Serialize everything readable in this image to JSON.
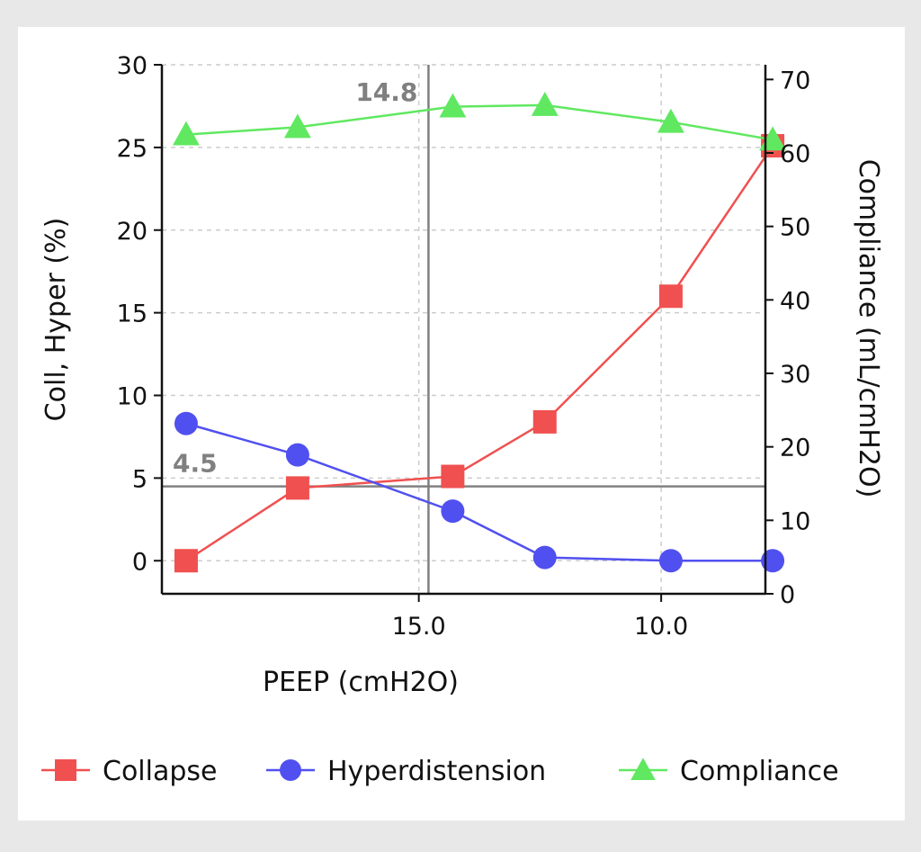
{
  "chart_data": {
    "type": "line",
    "xlabel": "PEEP (cmH2O)",
    "ylabel": "Coll, Hyper (%)",
    "y2label": "Compliance (mL/cmH2O)",
    "x_reversed": true,
    "xlim": [
      20.3,
      7.85
    ],
    "ylim": [
      -2,
      30
    ],
    "y2lim": [
      0,
      72
    ],
    "x_ticks": [
      15.0,
      10.0
    ],
    "x_tick_labels": [
      "15.0",
      "10.0"
    ],
    "y_ticks": [
      0,
      5,
      10,
      15,
      20,
      25,
      30
    ],
    "y_tick_labels": [
      "0",
      "5",
      "10",
      "15",
      "20",
      "25",
      "30"
    ],
    "y2_ticks": [
      0,
      10,
      20,
      30,
      40,
      50,
      60,
      70
    ],
    "y2_tick_labels": [
      "0",
      "10",
      "20",
      "30",
      "40",
      "50",
      "60",
      "70"
    ],
    "grid": true,
    "legend_position": "bottom",
    "series": [
      {
        "name": "Collapse",
        "axis": "left",
        "color": "#f05050",
        "marker": "square",
        "x": [
          19.8,
          17.5,
          14.3,
          12.4,
          9.8,
          7.7
        ],
        "y": [
          0.0,
          4.4,
          5.1,
          8.4,
          16.0,
          25.1
        ]
      },
      {
        "name": "Hyperdistension",
        "axis": "left",
        "color": "#5050f0",
        "marker": "circle",
        "x": [
          19.8,
          17.5,
          14.3,
          12.4,
          9.8,
          7.7
        ],
        "y": [
          8.3,
          6.4,
          3.0,
          0.2,
          0.0,
          0.0
        ]
      },
      {
        "name": "Compliance",
        "axis": "right",
        "color": "#60e860",
        "marker": "triangle",
        "x": [
          19.8,
          17.5,
          14.3,
          12.4,
          9.8,
          7.7
        ],
        "y": [
          62.5,
          63.5,
          66.3,
          66.5,
          64.2,
          61.8
        ]
      }
    ],
    "crosshair": {
      "x": 14.8,
      "y": 4.5,
      "x_label": "14.8",
      "y_label": "4.5",
      "color": "#808080"
    }
  }
}
